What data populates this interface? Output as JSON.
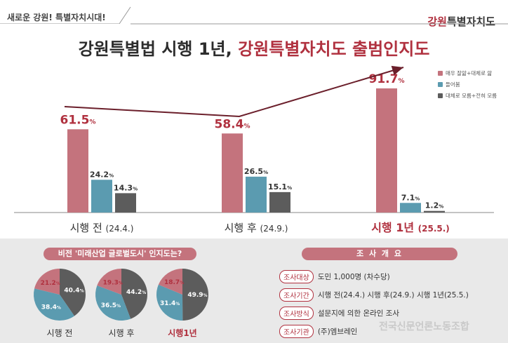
{
  "header": {
    "tagline": "새로운 강원! 특별자치시대!",
    "brand_prefix": "강원",
    "brand_suffix": "특별자치도",
    "headline_main": "강원특별법 시행 1년, ",
    "headline_accent": "강원특별자치도 출범인지도"
  },
  "colors": {
    "very_aware": "#c4737d",
    "heard": "#5b9bb0",
    "not_aware": "#5c5c5c",
    "accent": "#b0313f",
    "trend_arrow": "#6b1f2b"
  },
  "chart_data": [
    {
      "type": "bar",
      "categories": [
        "시행 전",
        "시행 후",
        "시행 1년"
      ],
      "category_dates": [
        "(24.4.)",
        "(24.9.)",
        "(25.5.)"
      ],
      "series": [
        {
          "name": "매우 잘앎+대체로 앎",
          "values": [
            61.5,
            58.4,
            91.7
          ]
        },
        {
          "name": "들어봄",
          "values": [
            24.2,
            26.5,
            7.1
          ]
        },
        {
          "name": "대체로 모름+전혀 모름",
          "values": [
            14.3,
            15.1,
            1.2
          ]
        }
      ],
      "value_suffix": "%",
      "ylim": [
        0,
        100
      ],
      "legend": "top-right",
      "grid": false,
      "trend_arrow": true
    },
    {
      "type": "pie",
      "title": "비전 '미래산업 글로벌도시' 인지도는?",
      "categories": [
        "시행 전",
        "시행 후",
        "시행1년"
      ],
      "series": [
        {
          "values": [
            21.2,
            38.4,
            40.4
          ]
        },
        {
          "values": [
            19.3,
            36.5,
            44.2
          ]
        },
        {
          "values": [
            18.7,
            31.4,
            49.9
          ]
        }
      ],
      "value_suffix": "%"
    }
  ],
  "survey": {
    "title": "조 사 개 요",
    "rows": [
      {
        "key": "조사대상",
        "value": "도민 1,000명 (차수당)"
      },
      {
        "key": "조사기간",
        "value": "시행 전(24.4.) 시행 후(24.9.) 시행 1년(25.5.)"
      },
      {
        "key": "조사방식",
        "value": "설문지에 의한 온라인 조사"
      },
      {
        "key": "조사기관",
        "value": "(주)엠브레인"
      }
    ]
  },
  "watermark": "전국신문언론노동조합"
}
